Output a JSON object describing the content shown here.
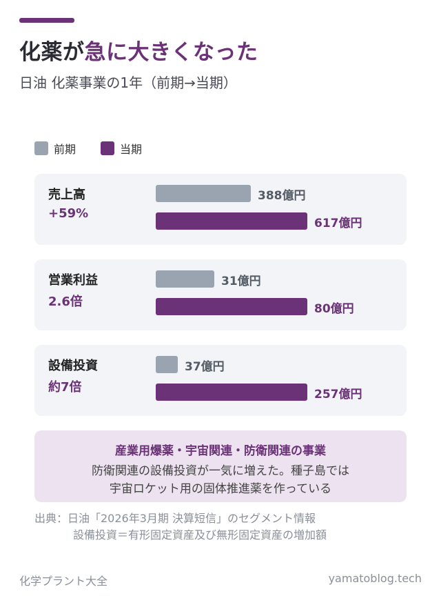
{
  "header": {
    "title_part1": "化薬が",
    "title_part2": "急に大きくなった",
    "subtitle": "日油 化薬事業の1年（前期→当期）"
  },
  "legend": {
    "prev": "前期",
    "curr": "当期"
  },
  "colors": {
    "prev": "#9aa4b0",
    "curr": "#6b3278",
    "accent": "#6b3278",
    "card_bg": "#f2f4f7",
    "note_bg": "#ede2f0"
  },
  "chart_data": {
    "type": "bar",
    "orientation": "horizontal",
    "unit": "億円",
    "series": [
      {
        "name": "前期",
        "values": [
          388,
          31,
          37
        ]
      },
      {
        "name": "当期",
        "values": [
          617,
          80,
          257
        ]
      }
    ],
    "categories": [
      "売上高",
      "営業利益",
      "設備投資"
    ],
    "cards": [
      {
        "name": "売上高",
        "change": "+59%",
        "prev": 388,
        "curr": 617,
        "prev_label": "388億円",
        "curr_label": "617億円"
      },
      {
        "name": "営業利益",
        "change": "2.6倍",
        "prev": 31,
        "curr": 80,
        "prev_label": "31億円",
        "curr_label": "80億円"
      },
      {
        "name": "設備投資",
        "change": "約7倍",
        "prev": 37,
        "curr": 257,
        "prev_label": "37億円",
        "curr_label": "257億円"
      }
    ],
    "scale": "per-metric (current period bar full width)"
  },
  "note": {
    "title": "産業用爆薬・宇宙関連・防衛関連の事業",
    "line1": "防衛関連の設備投資が一気に増えた。種子島では",
    "line2": "宇宙ロケット用の固体推進薬を作っている"
  },
  "source": {
    "line1": "出典：日油「2026年3月期 決算短信」のセグメント情報",
    "line2": "設備投資＝有形固定資産及び無形固定資産の増加額"
  },
  "footer": {
    "left": "化学プラント大全",
    "right": "yamatoblog.tech"
  }
}
